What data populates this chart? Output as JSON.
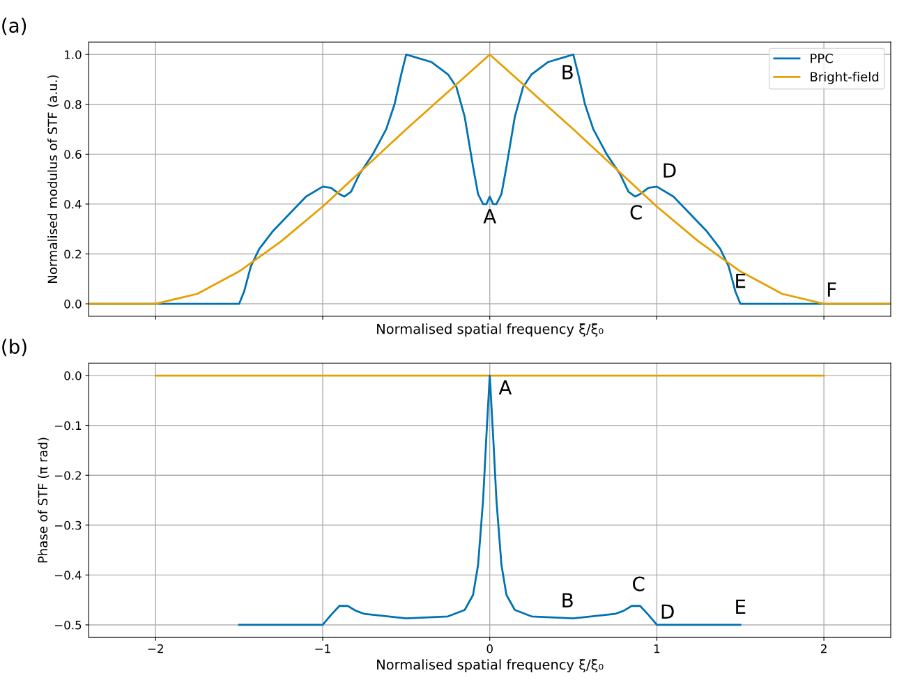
{
  "chart_data": [
    {
      "type": "line",
      "xlabel": "Normalised spatial frequency ξ/ξ₀",
      "ylabel": "Normalised modulus of STF (a.u.)",
      "xlim": [
        -2.4,
        2.4
      ],
      "xticks": [
        -2,
        -1,
        0,
        1,
        2
      ],
      "ylim": [
        -0.05,
        1.05
      ],
      "yticks": [
        {
          "value": 0,
          "label": "0.0"
        },
        0.2,
        0.4,
        0.6,
        0.8,
        {
          "value": 1,
          "label": "1.0"
        }
      ],
      "tick_labels": "y",
      "grid": true,
      "legend": "top right",
      "series": [
        {
          "name": "PPC",
          "color": "#0072b2",
          "x": [
            -2.4,
            -1.5,
            -1.47,
            -1.43,
            -1.38,
            -1.3,
            -1.2,
            -1.1,
            -1.0,
            -0.95,
            -0.9,
            -0.87,
            -0.83,
            -0.78,
            -0.7,
            -0.62,
            -0.57,
            -0.53,
            -0.5,
            -0.45,
            -0.35,
            -0.25,
            -0.2,
            -0.15,
            -0.1,
            -0.07,
            -0.04,
            -0.02,
            0,
            0.02,
            0.04,
            0.07,
            0.1,
            0.15,
            0.2,
            0.25,
            0.35,
            0.45,
            0.5,
            0.53,
            0.57,
            0.62,
            0.7,
            0.78,
            0.83,
            0.87,
            0.9,
            0.95,
            1.0,
            1.1,
            1.2,
            1.3,
            1.38,
            1.43,
            1.47,
            1.5,
            2.4
          ],
          "values": [
            0,
            0,
            0.05,
            0.15,
            0.22,
            0.29,
            0.36,
            0.43,
            0.47,
            0.465,
            0.44,
            0.43,
            0.45,
            0.52,
            0.6,
            0.7,
            0.8,
            0.92,
            1.0,
            0.99,
            0.97,
            0.92,
            0.87,
            0.75,
            0.55,
            0.44,
            0.4,
            0.4,
            0.43,
            0.4,
            0.4,
            0.44,
            0.55,
            0.75,
            0.87,
            0.92,
            0.97,
            0.99,
            1.0,
            0.92,
            0.8,
            0.7,
            0.6,
            0.52,
            0.45,
            0.43,
            0.44,
            0.465,
            0.47,
            0.43,
            0.36,
            0.29,
            0.22,
            0.15,
            0.05,
            0,
            0
          ]
        },
        {
          "name": "Bright-field",
          "color": "#e69f00",
          "x": [
            -2.4,
            -2,
            -1.75,
            -1.5,
            -1.25,
            -1,
            -0.5,
            0,
            0.5,
            1,
            1.25,
            1.5,
            1.75,
            2,
            2.4
          ],
          "values": [
            0,
            0,
            0.04,
            0.13,
            0.25,
            0.39,
            0.7,
            1.0,
            0.7,
            0.39,
            0.25,
            0.13,
            0.04,
            0,
            0
          ]
        }
      ],
      "annotations": [
        "(a)",
        {
          "text": "A",
          "x": 0,
          "y": 0.43
        },
        {
          "text": "B",
          "x": 0.5,
          "y": 1.0
        },
        {
          "text": "C",
          "x": 0.87,
          "y": 0.43
        },
        {
          "text": "D",
          "x": 1.0,
          "y": 0.47
        },
        {
          "text": "E",
          "x": 1.5,
          "y": 0
        },
        {
          "text": "F",
          "x": 2,
          "y": 0
        }
      ]
    },
    {
      "type": "line",
      "xlabel": "Normalised spatial frequency ξ/ξ₀",
      "ylabel": "Phase of STF (π rad)",
      "xlim": [
        -2.4,
        2.4
      ],
      "xticks": [
        {
          "value": -2,
          "label": "−2"
        },
        {
          "value": -1,
          "label": "−1"
        },
        0,
        1,
        2
      ],
      "ylim": [
        -0.525,
        0.025
      ],
      "yticks": [
        {
          "value": 0,
          "label": "0.0"
        },
        {
          "value": -0.1,
          "label": "−0.1"
        },
        {
          "value": -0.2,
          "label": "−0.2"
        },
        {
          "value": -0.3,
          "label": "−0.3"
        },
        {
          "value": -0.4,
          "label": "−0.4"
        },
        {
          "value": -0.5,
          "label": "−0.5"
        }
      ],
      "grid": true,
      "series": [
        {
          "color": "#e69f00",
          "x": [
            -2,
            2
          ],
          "values": [
            0,
            0
          ]
        },
        {
          "color": "#0072b2",
          "x": [
            -1.5,
            -1.0,
            -0.95,
            -0.9,
            -0.85,
            -0.8,
            -0.75,
            -0.5,
            -0.25,
            -0.15,
            -0.1,
            -0.07,
            -0.04,
            -0.02,
            0,
            0.02,
            0.04,
            0.07,
            0.1,
            0.15,
            0.25,
            0.5,
            0.75,
            0.8,
            0.85,
            0.9,
            0.95,
            1.0,
            1.5
          ],
          "values": [
            -0.5,
            -0.5,
            -0.48,
            -0.462,
            -0.462,
            -0.472,
            -0.478,
            -0.487,
            -0.483,
            -0.47,
            -0.44,
            -0.38,
            -0.25,
            -0.12,
            0,
            -0.12,
            -0.25,
            -0.38,
            -0.44,
            -0.47,
            -0.483,
            -0.487,
            -0.478,
            -0.472,
            -0.462,
            -0.462,
            -0.48,
            -0.5,
            -0.5
          ]
        }
      ],
      "annotations": [
        "(b)",
        {
          "text": "A",
          "x": 0,
          "y": 0
        },
        {
          "text": "B",
          "x": 0.5,
          "y": -0.487
        },
        {
          "text": "C",
          "x": 0.85,
          "y": -0.462
        },
        {
          "text": "D",
          "x": 1.0,
          "y": -0.5
        },
        {
          "text": "E",
          "x": 1.5,
          "y": -0.5
        }
      ]
    }
  ]
}
